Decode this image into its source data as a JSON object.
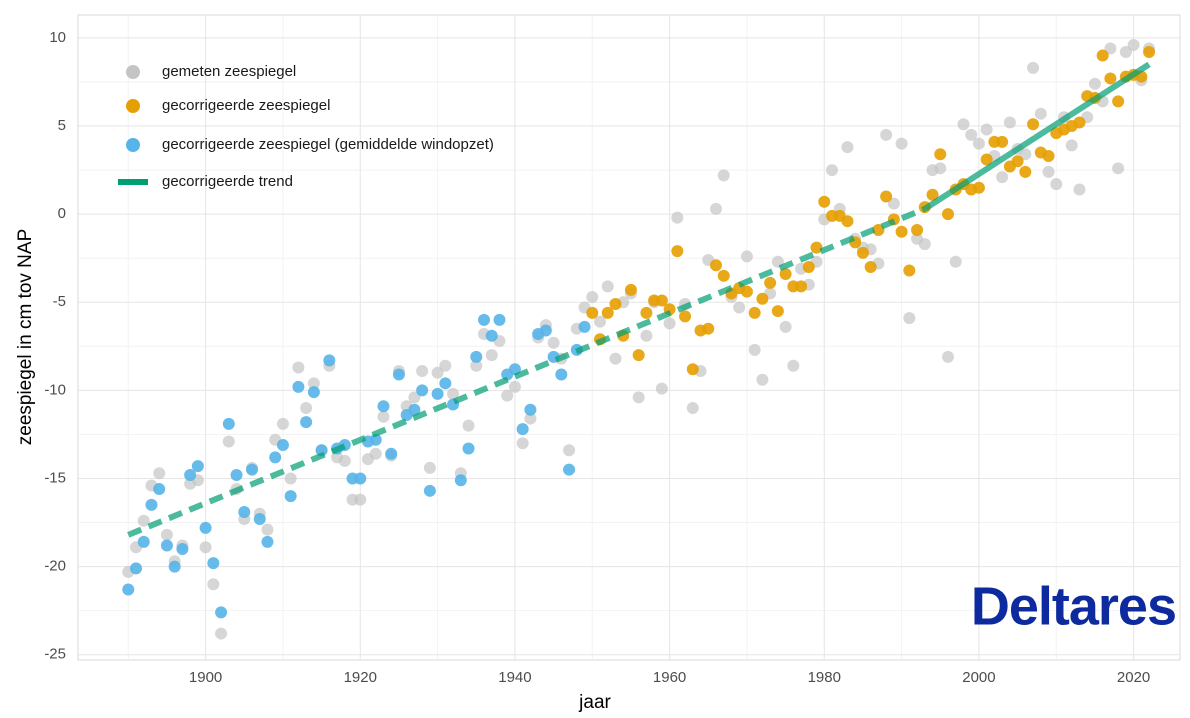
{
  "chart_data": {
    "type": "scatter",
    "xlabel": "jaar",
    "ylabel": "zeespiegel in cm tov NAP",
    "logo": "Deltares",
    "xlim": [
      1883.5,
      2026
    ],
    "ylim": [
      -25.3,
      11.3
    ],
    "xticks": [
      1900,
      1920,
      1940,
      1960,
      1980,
      2000,
      2020
    ],
    "yticks": [
      10,
      5,
      0,
      -5,
      -10,
      -15,
      -20,
      -25
    ],
    "xminor": [
      1890,
      1910,
      1930,
      1950,
      1970,
      1990,
      2010
    ],
    "yminor": [
      7.5,
      2.5,
      -2.5,
      -7.5,
      -12.5,
      -17.5,
      -22.5
    ],
    "grid": true,
    "legend": "top-left",
    "series": [
      {
        "name": "gemeten zeespiegel",
        "color": "#c4c4c4",
        "x": [
          1890,
          1891,
          1892,
          1893,
          1894,
          1895,
          1896,
          1897,
          1898,
          1899,
          1900,
          1901,
          1902,
          1903,
          1904,
          1905,
          1906,
          1907,
          1908,
          1909,
          1910,
          1911,
          1912,
          1913,
          1914,
          1915,
          1916,
          1917,
          1918,
          1919,
          1920,
          1921,
          1922,
          1923,
          1924,
          1925,
          1926,
          1927,
          1928,
          1929,
          1930,
          1931,
          1932,
          1933,
          1934,
          1935,
          1936,
          1937,
          1938,
          1939,
          1940,
          1941,
          1942,
          1943,
          1944,
          1945,
          1946,
          1947,
          1948,
          1949,
          1950,
          1951,
          1952,
          1953,
          1954,
          1955,
          1956,
          1957,
          1958,
          1959,
          1960,
          1961,
          1962,
          1963,
          1964,
          1965,
          1966,
          1967,
          1968,
          1969,
          1970,
          1971,
          1972,
          1973,
          1974,
          1975,
          1976,
          1977,
          1978,
          1979,
          1980,
          1981,
          1982,
          1983,
          1984,
          1985,
          1986,
          1987,
          1988,
          1989,
          1990,
          1991,
          1992,
          1993,
          1994,
          1995,
          1996,
          1997,
          1998,
          1999,
          2000,
          2001,
          2002,
          2003,
          2004,
          2005,
          2006,
          2007,
          2008,
          2009,
          2010,
          2011,
          2012,
          2013,
          2014,
          2015,
          2016,
          2017,
          2018,
          2019,
          2020,
          2021,
          2022
        ],
        "values": [
          -20.3,
          -18.9,
          -17.4,
          -15.4,
          -14.7,
          -18.2,
          -19.7,
          -18.8,
          -15.3,
          -15.1,
          -18.9,
          -21.0,
          -23.8,
          -12.9,
          -15.6,
          -17.3,
          -14.4,
          -17.0,
          -17.9,
          -12.8,
          -11.9,
          -15.0,
          -8.7,
          -11.0,
          -9.6,
          -13.4,
          -8.6,
          -13.8,
          -14.0,
          -16.2,
          -16.2,
          -13.9,
          -13.6,
          -11.5,
          -13.7,
          -8.9,
          -10.9,
          -10.4,
          -8.9,
          -14.4,
          -9.0,
          -8.6,
          -10.2,
          -14.7,
          -12.0,
          -8.6,
          -6.8,
          -8.0,
          -7.2,
          -10.3,
          -9.8,
          -13.0,
          -11.6,
          -7.0,
          -6.3,
          -7.3,
          -8.2,
          -13.4,
          -6.5,
          -5.3,
          -4.7,
          -6.1,
          -4.1,
          -8.2,
          -5.0,
          -4.5,
          -10.4,
          -6.9,
          -5.0,
          -9.9,
          -6.2,
          -0.2,
          -5.1,
          -11.0,
          -8.9,
          -2.6,
          0.3,
          2.2,
          -4.7,
          -5.3,
          -2.4,
          -7.7,
          -9.4,
          -4.5,
          -2.7,
          -6.4,
          -8.6,
          -3.1,
          -4.0,
          -2.7,
          -0.3,
          2.5,
          0.3,
          3.8,
          -1.4,
          -1.9,
          -2.0,
          -2.8,
          4.5,
          0.6,
          4.0,
          -5.9,
          -1.4,
          -1.7,
          2.5,
          2.6,
          -8.1,
          -2.7,
          5.1,
          4.5,
          4.0,
          4.8,
          3.3,
          2.1,
          5.2,
          3.7,
          3.4,
          8.3,
          5.7,
          2.4,
          1.7,
          5.5,
          3.9,
          1.4,
          5.5,
          7.4,
          6.4,
          9.4,
          2.6,
          9.2,
          9.6,
          7.6,
          9.4
        ]
      },
      {
        "name": "gecorrigeerde zeespiegel",
        "color": "#e69f00",
        "x": [
          1950,
          1951,
          1952,
          1953,
          1954,
          1955,
          1956,
          1957,
          1958,
          1959,
          1960,
          1961,
          1962,
          1963,
          1964,
          1965,
          1966,
          1967,
          1968,
          1969,
          1970,
          1971,
          1972,
          1973,
          1974,
          1975,
          1976,
          1977,
          1978,
          1979,
          1980,
          1981,
          1982,
          1983,
          1984,
          1985,
          1986,
          1987,
          1988,
          1989,
          1990,
          1991,
          1992,
          1993,
          1994,
          1995,
          1996,
          1997,
          1998,
          1999,
          2000,
          2001,
          2002,
          2003,
          2004,
          2005,
          2006,
          2007,
          2008,
          2009,
          2010,
          2011,
          2012,
          2013,
          2014,
          2015,
          2016,
          2017,
          2018,
          2019,
          2020,
          2021,
          2022
        ],
        "values": [
          -5.6,
          -7.1,
          -5.6,
          -5.1,
          -6.9,
          -4.3,
          -8.0,
          -5.6,
          -4.9,
          -4.9,
          -5.4,
          -2.1,
          -5.8,
          -8.8,
          -6.6,
          -6.5,
          -2.9,
          -3.5,
          -4.5,
          -4.2,
          -4.4,
          -5.6,
          -4.8,
          -3.9,
          -5.5,
          -3.4,
          -4.1,
          -4.1,
          -3.0,
          -1.9,
          0.7,
          -0.1,
          -0.1,
          -0.4,
          -1.6,
          -2.2,
          -3.0,
          -0.9,
          1.0,
          -0.3,
          -1.0,
          -3.2,
          -0.9,
          0.4,
          1.1,
          3.4,
          0.0,
          1.4,
          1.7,
          1.4,
          1.5,
          3.1,
          4.1,
          4.1,
          2.7,
          3.0,
          2.4,
          5.1,
          3.5,
          3.3,
          4.6,
          4.8,
          5.0,
          5.2,
          6.7,
          6.6,
          9.0,
          7.7,
          6.4,
          7.8,
          7.9,
          7.8,
          9.2
        ]
      },
      {
        "name": "gecorrigeerde zeespiegel (gemiddelde windopzet)",
        "color": "#56b4e9",
        "x": [
          1890,
          1891,
          1892,
          1893,
          1894,
          1895,
          1896,
          1897,
          1898,
          1899,
          1900,
          1901,
          1902,
          1903,
          1904,
          1905,
          1906,
          1907,
          1908,
          1909,
          1910,
          1911,
          1912,
          1913,
          1914,
          1915,
          1916,
          1917,
          1918,
          1919,
          1920,
          1921,
          1922,
          1923,
          1924,
          1925,
          1926,
          1927,
          1928,
          1929,
          1930,
          1931,
          1932,
          1933,
          1934,
          1935,
          1936,
          1937,
          1938,
          1939,
          1940,
          1941,
          1942,
          1943,
          1944,
          1945,
          1946,
          1947,
          1948,
          1949
        ],
        "values": [
          -21.3,
          -20.1,
          -18.6,
          -16.5,
          -15.6,
          -18.8,
          -20.0,
          -19.0,
          -14.8,
          -14.3,
          -17.8,
          -19.8,
          -22.6,
          -11.9,
          -14.8,
          -16.9,
          -14.5,
          -17.3,
          -18.6,
          -13.8,
          -13.1,
          -16.0,
          -9.8,
          -11.8,
          -10.1,
          -13.4,
          -8.3,
          -13.3,
          -13.1,
          -15.0,
          -15.0,
          -12.9,
          -12.8,
          -10.9,
          -13.6,
          -9.1,
          -11.4,
          -11.1,
          -10.0,
          -15.7,
          -10.2,
          -9.6,
          -10.8,
          -15.1,
          -13.3,
          -8.1,
          -6.0,
          -6.9,
          -6.0,
          -9.1,
          -8.8,
          -12.2,
          -11.1,
          -6.8,
          -6.6,
          -8.1,
          -9.1,
          -14.5,
          -7.7,
          -6.4
        ]
      },
      {
        "name": "gecorrigeerde trend",
        "type": "line",
        "color": "#009e73",
        "line_styles": [
          "dashed",
          "solid"
        ],
        "x": [
          1890,
          1993,
          2022
        ],
        "values": [
          -18.2,
          0.3,
          8.5
        ]
      }
    ]
  }
}
